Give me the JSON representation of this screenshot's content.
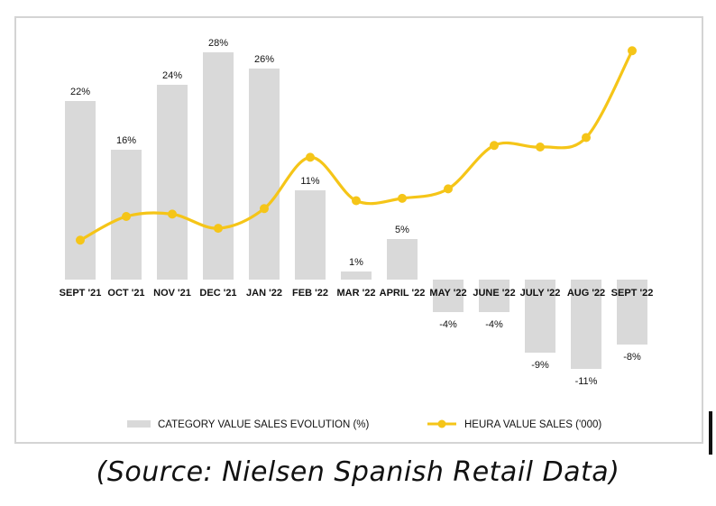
{
  "chart_data": {
    "type": "bar+line",
    "categories": [
      "SEPT '21",
      "OCT '21",
      "NOV '21",
      "DEC '21",
      "JAN '22",
      "FEB '22",
      "MAR '22",
      "APRIL '22",
      "MAY '22",
      "JUNE '22",
      "JULY '22",
      "AUG '22",
      "SEPT '22"
    ],
    "series": [
      {
        "name": "CATEGORY VALUE SALES EVOLUTION (%)",
        "type": "bar",
        "color": "#d9d9d9",
        "values": [
          22,
          16,
          24,
          28,
          26,
          11,
          1,
          5,
          -4,
          -4,
          -9,
          -11,
          -8
        ],
        "labels": [
          "22%",
          "16%",
          "24%",
          "28%",
          "26%",
          "11%",
          "1%",
          "5%",
          "-4%",
          "-4%",
          "-9%",
          "-11%",
          "-8%"
        ]
      },
      {
        "name": "HEURA VALUE SALES ('000)",
        "type": "line",
        "color": "#f5c518",
        "values": [
          5,
          8,
          8.3,
          6.5,
          9,
          15.5,
          10,
          10.3,
          11.5,
          17,
          16.8,
          18,
          29
        ]
      }
    ],
    "ylim_bar": [
      -13,
      30
    ],
    "ylim_line": [
      0,
      32
    ],
    "title": "",
    "xlabel": "",
    "ylabel": "",
    "legend_position": "bottom"
  },
  "caption": "(Source: Nielsen Spanish Retail Data)"
}
